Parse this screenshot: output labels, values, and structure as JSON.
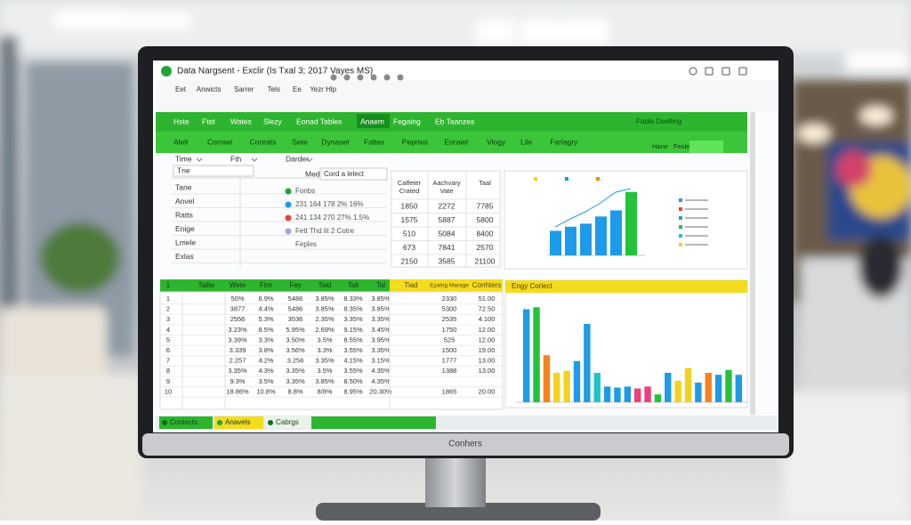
{
  "window": {
    "title": "Data Nargsent - Exclir (Is Txal 3; 2017 Vayes MS)"
  },
  "menu": [
    "Eet",
    "Anwicts",
    "Sarrer",
    "Tels",
    "Ee",
    "Yezr Hlp"
  ],
  "tabs": [
    "Hste",
    "Ftat",
    "Wates",
    "Slezy",
    "Eonad Tables",
    "Anaem",
    "Fegaing",
    "Eb Taanzes"
  ],
  "groups": [
    "Alelt",
    "Corraet",
    "Conrats",
    "Sete",
    "Dynaset",
    "Faltes",
    "Peprtes",
    "Eoraiet",
    "Vlogy",
    "Lile",
    "Farlagry"
  ],
  "ribbon_side": {
    "link": "Fable Deelling",
    "buttons": [
      "Hane",
      "Fesle"
    ]
  },
  "filters": [
    "Time",
    "Fth",
    "Darder"
  ],
  "name_box": "Tne",
  "side_labels": [
    "Tane",
    "Anvel",
    "Ratts",
    "Enige",
    "Lmele",
    "Exlas"
  ],
  "selector": {
    "label": "Medo",
    "value": "Cord a lelect"
  },
  "list": [
    "Fonbs",
    "231 164 178 2% 16%",
    "241 134 270 27% 1.5%",
    "Fett Thd lit 2 Cotre",
    "Feples"
  ],
  "summary": {
    "header": [
      "Calfeter Crated",
      "Aachvary Vate",
      "Taal"
    ],
    "rows": [
      [
        "1850",
        "2272",
        "7785"
      ],
      [
        "1575",
        "5887",
        "5800"
      ],
      [
        "510",
        "5084",
        "8400"
      ],
      [
        "673",
        "7841",
        "2570"
      ],
      [
        "2150",
        "3585",
        "21100"
      ]
    ]
  },
  "top_chart": {
    "values": [
      24,
      28,
      31,
      38,
      44,
      62
    ],
    "colors": [
      "#1e9be8",
      "#1e9be8",
      "#1e9be8",
      "#1e9be8",
      "#1e9be8",
      "#22c33a"
    ]
  },
  "sheet": {
    "header": [
      "1",
      "Talite",
      "Wete",
      "Ftre",
      "Fey",
      "Tald",
      "Talt",
      "Tal",
      "Tiad",
      "Eyalng Marage",
      "Conhters"
    ],
    "rows": [
      [
        "1",
        null,
        "50%",
        "6.9%",
        "5486",
        "3.85%",
        "8.33%",
        "3.85%",
        null,
        "2330",
        "51.00"
      ],
      [
        "2",
        null,
        "3877",
        "4.4%",
        "5486",
        "3.85%",
        "8.35%",
        "3.85%",
        null,
        "5300",
        "72.50"
      ],
      [
        "3",
        null,
        "2556",
        "5.3%",
        "3536",
        "2.35%",
        "3.35%",
        "3.35%",
        null,
        "2535",
        "4.100"
      ],
      [
        "4",
        null,
        "3.23%",
        "8.5%",
        "5.95%",
        "2.69%",
        "9.15%",
        "3.45%",
        null,
        "1750",
        "12.00"
      ],
      [
        "5",
        null,
        "3.39%",
        "3.3%",
        "3.50%",
        "3.5%",
        "8.55%",
        "3.95%",
        null,
        "525",
        "12.00"
      ],
      [
        "6",
        null,
        "3.339",
        "3.8%",
        "3.56%",
        "3.3%",
        "3.55%",
        "3.35%",
        null,
        "1500",
        "19.00"
      ],
      [
        "7",
        null,
        "2.257",
        "4.2%",
        "3.256",
        "3.35%",
        "4.15%",
        "3.15%",
        null,
        "1777",
        "13.00"
      ],
      [
        "8",
        null,
        "3.35%",
        "4.3%",
        "3.35%",
        "3.5%",
        "3.55%",
        "4.35%",
        null,
        "1388",
        "13.00"
      ],
      [
        "9",
        null,
        "9.3%",
        "3.5%",
        "3.35%",
        "3.85%",
        "8.50%",
        "4.35%",
        null,
        null,
        null
      ],
      [
        "10",
        null,
        "18.86%",
        "10.8%",
        "8.8%",
        "8/8%",
        "8.95%",
        "20.30%",
        null,
        "1865",
        "20.00"
      ]
    ]
  },
  "bottom_chart": {
    "title": "Engy Corlect",
    "values": [
      95,
      97,
      48,
      30,
      32,
      42,
      80,
      30,
      16,
      15,
      16,
      14,
      16,
      8,
      30,
      22,
      35,
      20,
      30,
      28,
      33,
      28
    ],
    "colors": [
      "#1e9be8",
      "#22c33a",
      "#f7821e",
      "#f2d21e",
      "#f2d21e",
      "#1e9be8",
      "#1e9be8",
      "#1ec3c8",
      "#1e9be8",
      "#1e9be8",
      "#1e9be8",
      "#ef3f7a",
      "#ef3f7a",
      "#22c33a",
      "#1e9be8",
      "#f2d21e",
      "#f2d21e",
      "#1e9be8",
      "#f7821e",
      "#1e9be8",
      "#22c33a",
      "#1e9be8"
    ]
  },
  "sheet_tabs": [
    "Conlects",
    "Anavels",
    "Cabrgs"
  ],
  "brand": "Conhers"
}
